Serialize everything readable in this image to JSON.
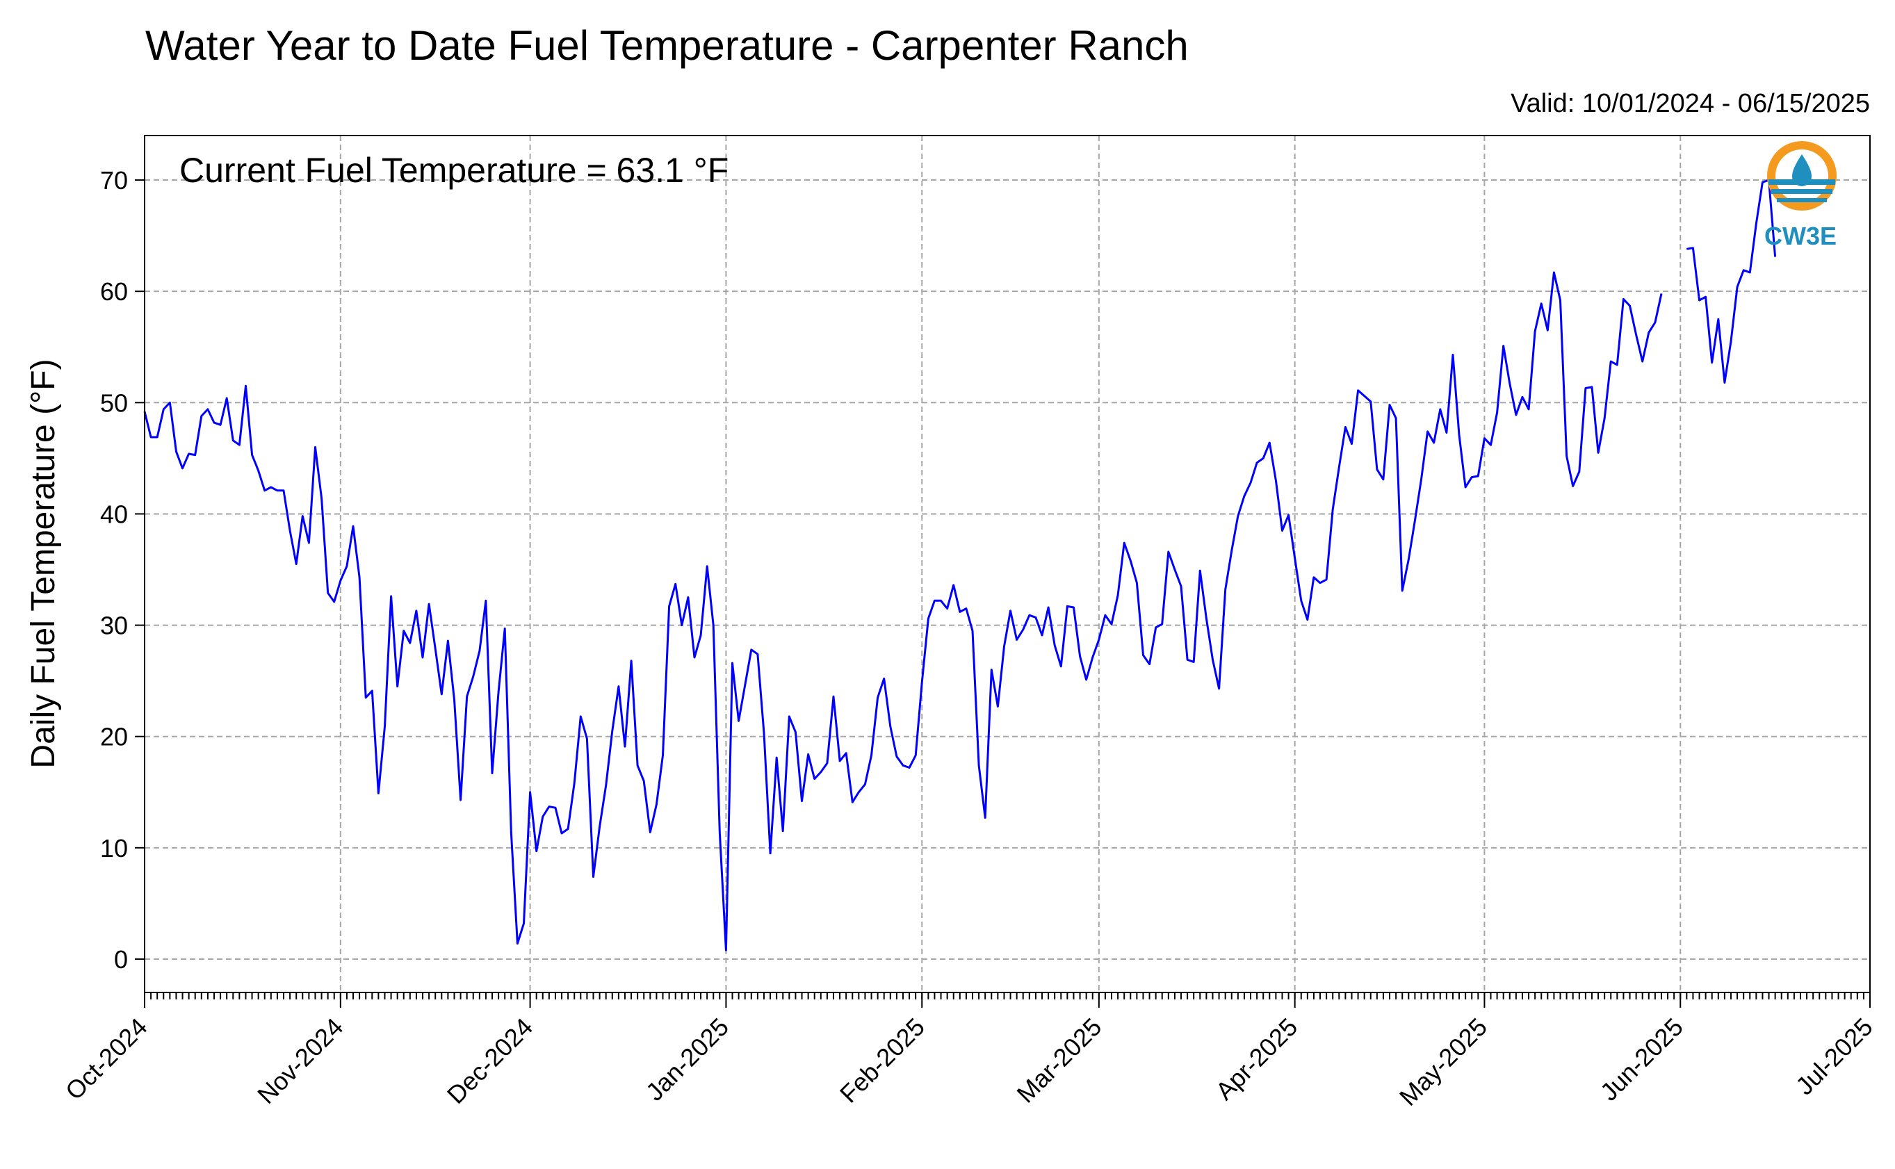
{
  "chart_data": {
    "type": "line",
    "title": "Water Year to Date Fuel Temperature - Carpenter Ranch",
    "subtitle": "Valid: 10/01/2024 - 06/15/2025",
    "annotation": "Current Fuel Temperature = 63.1 °F",
    "ylabel": "Daily Fuel Temperature (°F)",
    "xlabel": "",
    "ylim": [
      -3,
      74
    ],
    "xlim": [
      "2024-10-01",
      "2025-07-01"
    ],
    "yticks": [
      0,
      10,
      20,
      30,
      40,
      50,
      60,
      70
    ],
    "xticks": [
      "Oct-2024",
      "Nov-2024",
      "Dec-2024",
      "Jan-2025",
      "Feb-2025",
      "Mar-2025",
      "Apr-2025",
      "May-2025",
      "Jun-2025",
      "Jul-2025"
    ],
    "xtick_dates": [
      "2024-10-01",
      "2024-11-01",
      "2024-12-01",
      "2025-01-01",
      "2025-02-01",
      "2025-03-01",
      "2025-04-01",
      "2025-05-01",
      "2025-06-01",
      "2025-07-01"
    ],
    "grid": true,
    "grid_style": "dashed",
    "line_color": "#0000ff",
    "logo": "CW3E",
    "logo_colors": {
      "orange": "#f39a1f",
      "blue": "#1f8fc0"
    },
    "series": [
      {
        "name": "",
        "start_date": "2024-10-01",
        "values": [
          49.2,
          46.9,
          46.9,
          49.4,
          50.0,
          45.6,
          44.1,
          45.4,
          45.3,
          48.8,
          49.4,
          48.2,
          48.0,
          50.4,
          46.6,
          46.2,
          51.5,
          45.3,
          43.9,
          42.1,
          42.4,
          42.1,
          42.1,
          38.5,
          35.5,
          39.8,
          37.4,
          46.0,
          41.4,
          32.9,
          32.1,
          34.0,
          35.3,
          38.9,
          34.3,
          23.5,
          24.1,
          14.9,
          20.9,
          32.6,
          24.5,
          29.5,
          28.4,
          31.3,
          27.1,
          31.9,
          27.9,
          23.8,
          28.6,
          23.3,
          14.3,
          23.6,
          25.4,
          27.7,
          32.2,
          16.7,
          24.0,
          29.7,
          11.4,
          1.4,
          3.2,
          15.0,
          9.7,
          12.8,
          13.7,
          13.6,
          11.3,
          11.7,
          15.8,
          21.8,
          19.8,
          7.4,
          11.9,
          15.6,
          20.5,
          24.5,
          19.1,
          26.8,
          17.4,
          16.0,
          11.4,
          13.9,
          18.3,
          31.7,
          33.7,
          30.0,
          32.5,
          27.1,
          29.1,
          35.3,
          30.0,
          11.4,
          0.8,
          26.6,
          21.4,
          24.6,
          27.8,
          27.4,
          20.3,
          9.5,
          18.1,
          11.5,
          21.8,
          20.4,
          14.2,
          18.4,
          16.2,
          16.8,
          17.6,
          23.6,
          17.8,
          18.5,
          14.1,
          15.0,
          15.7,
          18.3,
          23.5,
          25.2,
          20.9,
          18.2,
          17.4,
          17.2,
          18.3,
          24.9,
          30.6,
          32.2,
          32.2,
          31.5,
          33.6,
          31.2,
          31.5,
          29.5,
          17.4,
          12.7,
          26.0,
          22.7,
          28.1,
          31.3,
          28.7,
          29.6,
          30.9,
          30.7,
          29.1,
          31.6,
          28.2,
          26.3,
          31.7,
          31.6,
          27.2,
          25.1,
          27.1,
          28.7,
          30.9,
          30.1,
          32.7,
          37.4,
          35.8,
          33.8,
          27.3,
          26.5,
          29.8,
          30.1,
          36.6,
          35.0,
          33.5,
          26.9,
          26.7,
          34.9,
          30.6,
          26.9,
          24.3,
          33.2,
          36.7,
          39.8,
          41.6,
          42.8,
          44.6,
          45.0,
          46.4,
          43.0,
          38.5,
          39.9,
          36.0,
          32.2,
          30.5,
          34.3,
          33.8,
          34.1,
          40.4,
          44.2,
          47.8,
          46.3,
          51.1,
          50.6,
          50.1,
          44.0,
          43.1,
          49.8,
          48.6,
          33.1,
          35.9,
          39.4,
          43.1,
          47.4,
          46.4,
          49.4,
          47.3,
          54.3,
          47.1,
          42.4,
          43.3,
          43.4,
          46.8,
          46.2,
          49.1,
          55.1,
          51.7,
          48.9,
          50.5,
          49.4,
          56.4,
          58.9,
          56.5,
          61.7,
          59.2,
          45.2,
          42.5,
          43.8,
          51.3,
          51.4,
          45.5,
          48.6,
          53.7,
          53.4,
          59.3,
          58.7,
          56.1,
          53.7,
          56.3,
          57.2,
          59.8,
          null,
          null,
          null,
          63.8,
          63.9,
          59.2,
          59.5,
          53.6,
          57.5,
          51.8,
          55.5,
          60.4,
          61.9,
          61.7,
          66.1,
          69.8,
          70.0,
          63.1
        ]
      }
    ]
  }
}
